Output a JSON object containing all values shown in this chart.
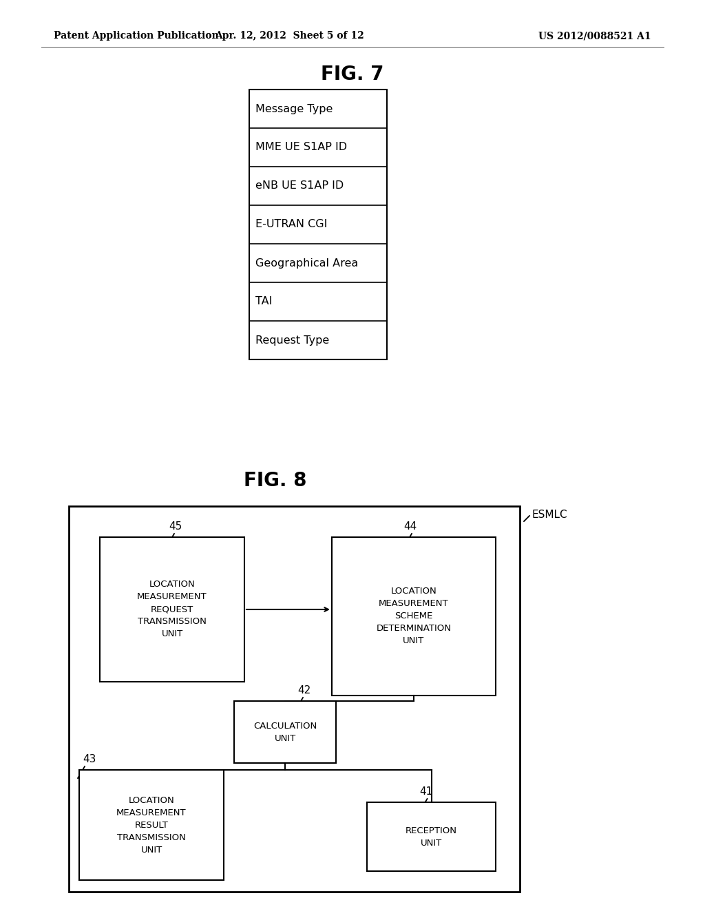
{
  "background_color": "#ffffff",
  "header_left": "Patent Application Publication",
  "header_center": "Apr. 12, 2012  Sheet 5 of 12",
  "header_right": "US 2012/0088521 A1",
  "fig7_title": "FIG. 7",
  "fig7_rows": [
    "Message Type",
    "MME UE S1AP ID",
    "eNB UE S1AP ID",
    "E-UTRAN CGI",
    "Geographical Area",
    "TAI",
    "Request Type"
  ],
  "fig8_title": "FIG. 8",
  "esmlc_label": "ESMLC",
  "box45_label": "45",
  "box44_label": "44",
  "box43_label": "43",
  "box42_label": "42",
  "box41_label": "41",
  "unit_loc_meas_req": "LOCATION\nMEASUREMENT\nREQUEST\nTRANSMISSION\nUNIT",
  "unit_loc_meas_scheme": "LOCATION\nMEASUREMENT\nSCHEME\nDETERMINATION\nUNIT",
  "unit_calc": "CALCULATION\nUNIT",
  "unit_loc_meas_result": "LOCATION\nMEASUREMENT\nRESULT\nTRANSMISSION\nUNIT",
  "unit_reception": "RECEPTION\nUNIT",
  "line_color": "#000000",
  "text_color": "#000000"
}
